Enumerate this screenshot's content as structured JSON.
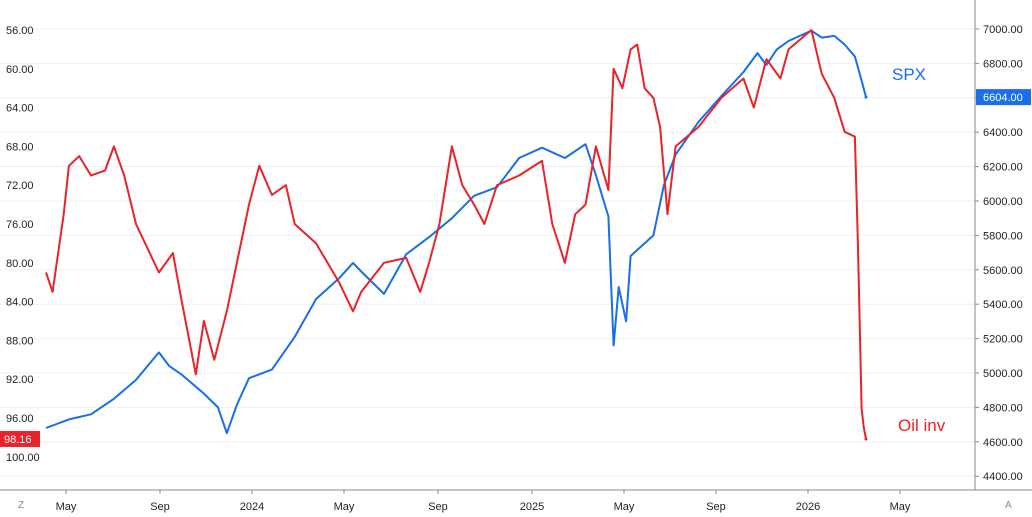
{
  "chart_data": {
    "type": "line",
    "title": "",
    "xlabel": "",
    "x_ticks": [
      "May",
      "Sep",
      "2024",
      "May",
      "Sep",
      "2025",
      "May",
      "Sep",
      "2026",
      "May"
    ],
    "left_axis": {
      "ticks": [
        "56.00",
        "60.00",
        "64.00",
        "68.00",
        "72.00",
        "76.00",
        "80.00",
        "84.00",
        "88.00",
        "92.00",
        "96.00",
        "100.00"
      ],
      "inverted": true,
      "range": [
        55,
        101
      ]
    },
    "right_axis": {
      "ticks": [
        "7000.00",
        "6800.00",
        "6600.00",
        "6400.00",
        "6200.00",
        "6000.00",
        "5800.00",
        "5600.00",
        "5400.00",
        "5200.00",
        "5000.00",
        "4800.00",
        "4600.00",
        "4400.00"
      ],
      "range": [
        4380,
        7040
      ]
    },
    "series": [
      {
        "name": "SPX",
        "axis": "right",
        "color": "#1a6ee8",
        "last_value": "6604.00",
        "values": [
          [
            "2023-03-01",
            4680
          ],
          [
            "2023-04-01",
            4730
          ],
          [
            "2023-05-01",
            4760
          ],
          [
            "2023-06-01",
            4850
          ],
          [
            "2023-07-01",
            4960
          ],
          [
            "2023-08-01",
            5120
          ],
          [
            "2023-08-15",
            5040
          ],
          [
            "2023-09-01",
            4990
          ],
          [
            "2023-10-01",
            4880
          ],
          [
            "2023-10-20",
            4800
          ],
          [
            "2023-11-01",
            4650
          ],
          [
            "2023-11-15",
            4820
          ],
          [
            "2023-12-01",
            4970
          ],
          [
            "2024-01-01",
            5020
          ],
          [
            "2024-02-01",
            5210
          ],
          [
            "2024-03-01",
            5430
          ],
          [
            "2024-04-01",
            5550
          ],
          [
            "2024-04-20",
            5640
          ],
          [
            "2024-05-01",
            5590
          ],
          [
            "2024-06-01",
            5460
          ],
          [
            "2024-07-01",
            5690
          ],
          [
            "2024-08-01",
            5790
          ],
          [
            "2024-09-01",
            5900
          ],
          [
            "2024-10-01",
            6030
          ],
          [
            "2024-11-01",
            6080
          ],
          [
            "2024-12-01",
            6250
          ],
          [
            "2025-01-01",
            6310
          ],
          [
            "2025-02-01",
            6250
          ],
          [
            "2025-03-01",
            6330
          ],
          [
            "2025-03-15",
            6150
          ],
          [
            "2025-04-01",
            5910
          ],
          [
            "2025-04-08",
            5160
          ],
          [
            "2025-04-15",
            5500
          ],
          [
            "2025-04-25",
            5300
          ],
          [
            "2025-05-01",
            5680
          ],
          [
            "2025-06-01",
            5800
          ],
          [
            "2025-06-15",
            6090
          ],
          [
            "2025-07-01",
            6270
          ],
          [
            "2025-08-01",
            6460
          ],
          [
            "2025-09-01",
            6610
          ],
          [
            "2025-10-01",
            6750
          ],
          [
            "2025-10-20",
            6860
          ],
          [
            "2025-11-01",
            6790
          ],
          [
            "2025-11-15",
            6880
          ],
          [
            "2025-12-01",
            6930
          ],
          [
            "2026-01-01",
            6990
          ],
          [
            "2026-01-15",
            6950
          ],
          [
            "2026-02-01",
            6960
          ],
          [
            "2026-02-15",
            6910
          ],
          [
            "2026-03-01",
            6840
          ],
          [
            "2026-03-10",
            6700
          ],
          [
            "2026-03-16",
            6604
          ]
        ]
      },
      {
        "name": "Oil inv",
        "axis": "left",
        "color": "#e8232a",
        "last_value": "98.16",
        "values": [
          [
            "2023-03-01",
            81.0
          ],
          [
            "2023-03-10",
            83.0
          ],
          [
            "2023-03-25",
            75.0
          ],
          [
            "2023-04-01",
            70.0
          ],
          [
            "2023-04-15",
            69.0
          ],
          [
            "2023-05-01",
            71.0
          ],
          [
            "2023-05-20",
            70.5
          ],
          [
            "2023-06-01",
            68.0
          ],
          [
            "2023-06-15",
            71.0
          ],
          [
            "2023-07-01",
            76.0
          ],
          [
            "2023-08-01",
            81.0
          ],
          [
            "2023-08-20",
            79.0
          ],
          [
            "2023-09-01",
            84.0
          ],
          [
            "2023-09-20",
            91.5
          ],
          [
            "2023-10-01",
            86.0
          ],
          [
            "2023-10-15",
            90.0
          ],
          [
            "2023-11-01",
            85.0
          ],
          [
            "2023-11-20",
            78.0
          ],
          [
            "2023-12-01",
            74.0
          ],
          [
            "2023-12-15",
            70.0
          ],
          [
            "2024-01-01",
            73.0
          ],
          [
            "2024-01-20",
            72.0
          ],
          [
            "2024-02-01",
            76.0
          ],
          [
            "2024-03-01",
            78.0
          ],
          [
            "2024-04-01",
            82.0
          ],
          [
            "2024-04-20",
            85.0
          ],
          [
            "2024-05-01",
            83.0
          ],
          [
            "2024-06-01",
            80.0
          ],
          [
            "2024-07-01",
            79.5
          ],
          [
            "2024-07-20",
            83.0
          ],
          [
            "2024-08-01",
            80.0
          ],
          [
            "2024-08-15",
            76.0
          ],
          [
            "2024-09-01",
            68.0
          ],
          [
            "2024-09-15",
            72.0
          ],
          [
            "2024-10-01",
            74.0
          ],
          [
            "2024-10-15",
            76.0
          ],
          [
            "2024-11-01",
            72.0
          ],
          [
            "2024-12-01",
            71.0
          ],
          [
            "2025-01-01",
            69.5
          ],
          [
            "2025-01-15",
            76.0
          ],
          [
            "2025-02-01",
            80.0
          ],
          [
            "2025-02-15",
            75.0
          ],
          [
            "2025-03-01",
            74.0
          ],
          [
            "2025-03-15",
            68.0
          ],
          [
            "2025-04-01",
            72.5
          ],
          [
            "2025-04-08",
            60.0
          ],
          [
            "2025-04-20",
            62.0
          ],
          [
            "2025-05-01",
            58.0
          ],
          [
            "2025-05-10",
            57.5
          ],
          [
            "2025-05-20",
            62.0
          ],
          [
            "2025-06-01",
            63.0
          ],
          [
            "2025-06-10",
            66.0
          ],
          [
            "2025-06-20",
            75.0
          ],
          [
            "2025-07-01",
            68.0
          ],
          [
            "2025-08-01",
            66.0
          ],
          [
            "2025-09-01",
            63.0
          ],
          [
            "2025-10-01",
            61.0
          ],
          [
            "2025-10-15",
            64.0
          ],
          [
            "2025-11-01",
            59.0
          ],
          [
            "2025-11-20",
            61.0
          ],
          [
            "2025-12-01",
            58.0
          ],
          [
            "2026-01-01",
            56.0
          ],
          [
            "2026-01-15",
            60.5
          ],
          [
            "2026-02-01",
            63.0
          ],
          [
            "2026-02-15",
            66.5
          ],
          [
            "2026-03-01",
            67.0
          ],
          [
            "2026-03-05",
            78.0
          ],
          [
            "2026-03-08",
            88.0
          ],
          [
            "2026-03-10",
            95.0
          ],
          [
            "2026-03-13",
            97.0
          ],
          [
            "2026-03-16",
            98.16
          ]
        ]
      }
    ],
    "legend": "inline labels at right end of each line",
    "grid": true
  }
}
